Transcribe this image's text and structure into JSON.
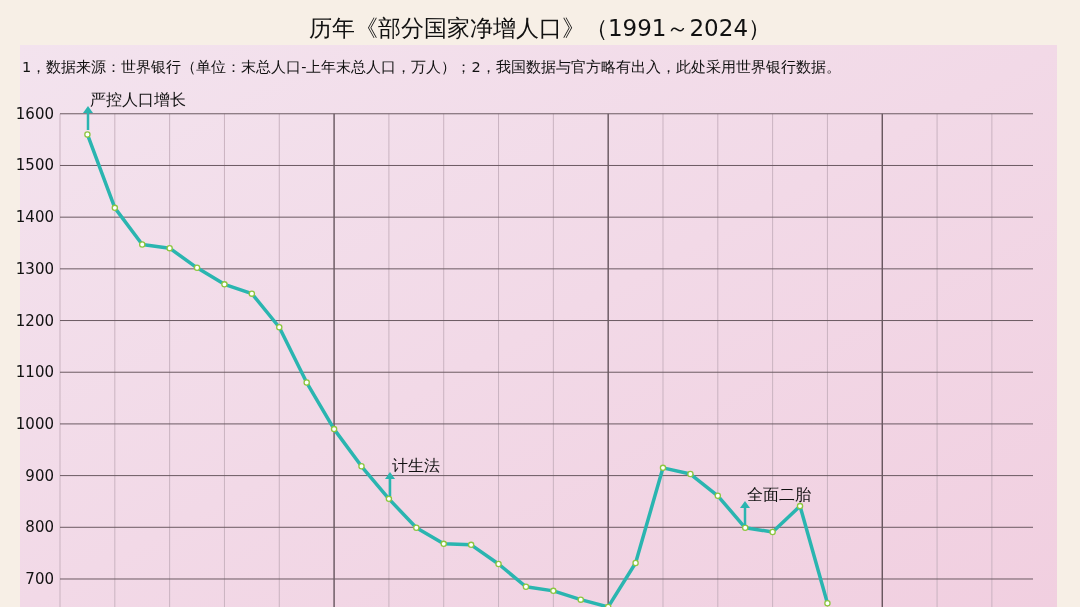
{
  "chart_data": {
    "type": "line",
    "title": "历年《部分国家净增人口》（1991～2024）",
    "subtitle": "1，数据来源：世界银行（单位：末总人口-上年末总人口，万人）；2，我国数据与官方略有出入，此处采用世界银行数据。",
    "categories": [
      null,
      null,
      null,
      null,
      null,
      null,
      null,
      null,
      null,
      null,
      null,
      null,
      null,
      null,
      null,
      null,
      null,
      null,
      null,
      null,
      null,
      null,
      null,
      null,
      null,
      null,
      null,
      null,
      null,
      null,
      null,
      null,
      null,
      null
    ],
    "series": [
      {
        "color": "#2ab5b0",
        "values": [
          1560,
          1418,
          1347,
          1340,
          1302,
          1270,
          1252,
          1187,
          1080,
          990,
          918,
          855,
          799,
          768,
          766,
          729,
          685,
          677,
          660,
          646,
          731,
          915,
          903,
          861,
          799,
          791,
          841,
          653,
          null,
          null,
          null,
          null,
          null,
          null
        ]
      }
    ],
    "ylim": [
      640,
      1735
    ],
    "yticks": [
      700,
      800,
      900,
      1000,
      1100,
      1200,
      1300,
      1400,
      1500,
      1600
    ],
    "grid": true,
    "marker": "circle",
    "line_style": "solid",
    "annotations": [
      "严控人口增长",
      "计生法",
      "全面二胎"
    ]
  }
}
